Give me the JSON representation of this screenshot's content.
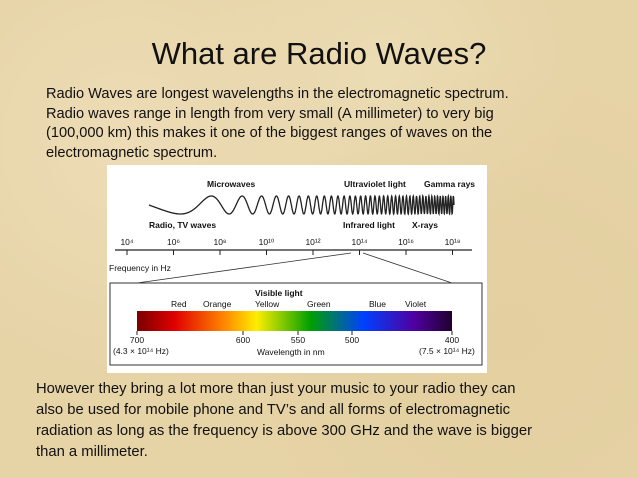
{
  "slide": {
    "title": "What are Radio Waves?",
    "intro_lines": [
      "Radio Waves are longest wavelengths in the electromagnetic spectrum.",
      "Radio waves range in length from very small (A millimeter) to very big",
      "(100,000 km) this makes it one of the biggest ranges of waves on the",
      "electromagnetic spectrum."
    ],
    "diagram": {
      "top_labels": [
        "Microwaves",
        "Ultraviolet light",
        "Gamma rays"
      ],
      "bottom_labels": [
        "Radio, TV waves",
        "Infrared light",
        "X-rays"
      ],
      "frequency_ticks": [
        "10⁴",
        "10⁶",
        "10⁸",
        "10¹⁰",
        "10¹²",
        "10¹⁴",
        "10¹⁶",
        "10¹⁸"
      ],
      "frequency_label": "Frequency in Hz",
      "visible_title": "Visible light",
      "colors": [
        "Red",
        "Orange",
        "Yellow",
        "Green",
        "Blue",
        "Violet"
      ],
      "wavelength_ticks": [
        "700",
        "600",
        "550",
        "500",
        "400"
      ],
      "left_frequency": "(4.3 × 10¹⁴ Hz)",
      "right_frequency": "(7.5 × 10¹⁴ Hz)",
      "wavelength_label": "Wavelength in nm"
    },
    "outro_lines": [
      "However they bring a lot more than just your music to your radio they can",
      "also be used for mobile phone and TV’s and all forms of electromagnetic",
      "radiation as long as the frequency is above 300 GHz and the wave is bigger",
      "than a millimeter."
    ]
  }
}
